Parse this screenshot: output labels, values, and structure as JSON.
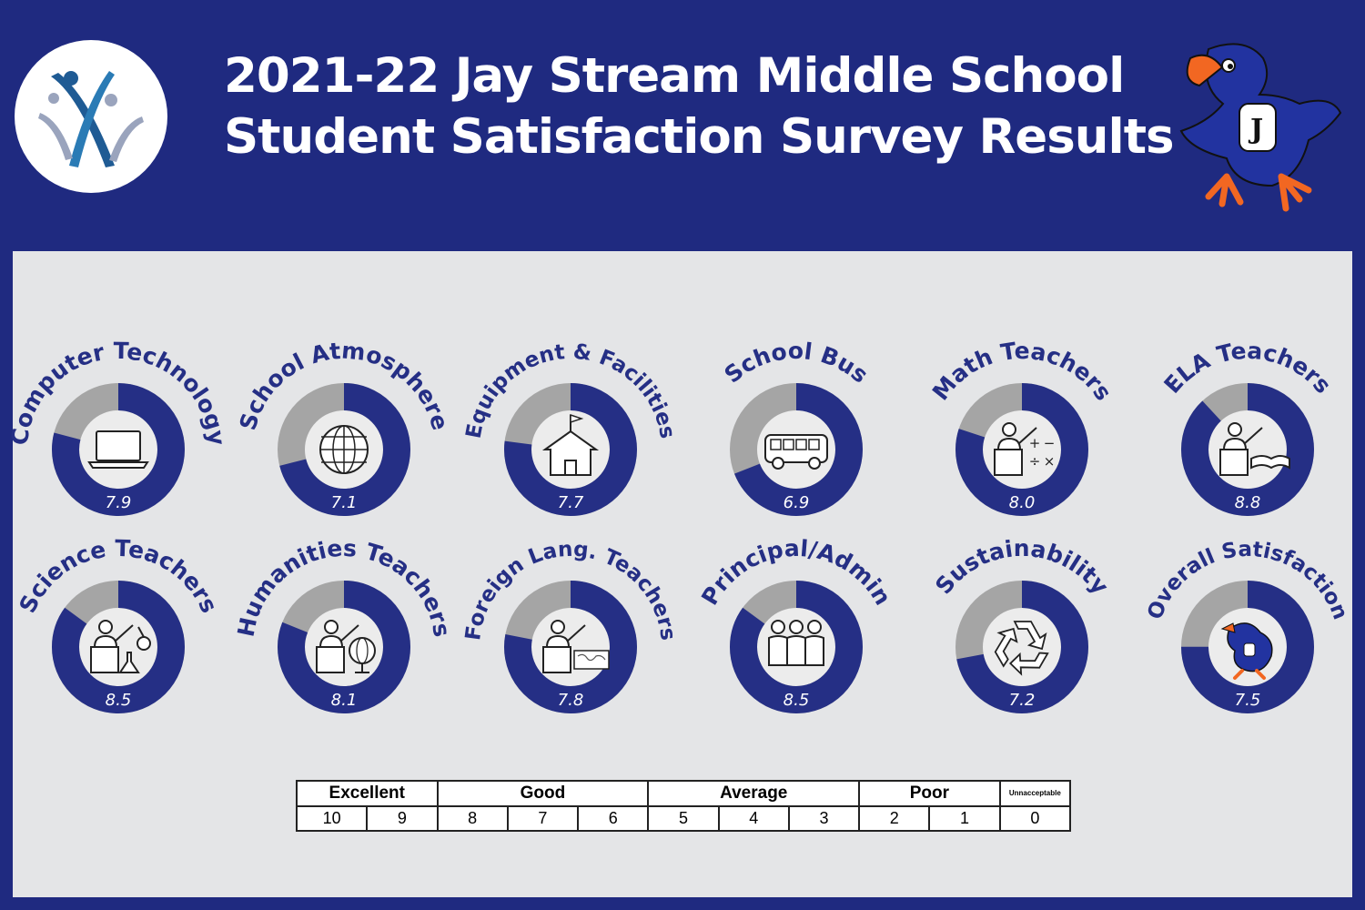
{
  "header": {
    "title_line1": "2021-22 Jay Stream Middle School",
    "title_line2": "Student Satisfaction Survey Results"
  },
  "colors": {
    "background": "#1f2a80",
    "panel": "#e4e5e7",
    "ring_filled": "#252f85",
    "ring_remainder": "#a5a5a5",
    "mascot_orange": "#f26722"
  },
  "chart_data": {
    "type": "donut",
    "scale_max": 10,
    "items": [
      {
        "label": "Computer Technology",
        "value": 7.9,
        "display": "7.9",
        "icon": "laptop-icon"
      },
      {
        "label": "School Atmosphere",
        "value": 7.1,
        "display": "7.1",
        "icon": "globe-icon"
      },
      {
        "label": "Equipment & Facilities",
        "value": 7.7,
        "display": "7.7",
        "icon": "schoolhouse-icon"
      },
      {
        "label": "School Bus",
        "value": 6.9,
        "display": "6.9",
        "icon": "bus-icon"
      },
      {
        "label": "Math Teachers",
        "value": 8.0,
        "display": "8.0",
        "icon": "math-teacher-icon"
      },
      {
        "label": "ELA Teachers",
        "value": 8.8,
        "display": "8.8",
        "icon": "ela-teacher-icon"
      },
      {
        "label": "Science Teachers",
        "value": 8.5,
        "display": "8.5",
        "icon": "science-teacher-icon"
      },
      {
        "label": "Humanities Teachers",
        "value": 8.1,
        "display": "8.1",
        "icon": "humanities-teacher-icon"
      },
      {
        "label": "Foreign Lang. Teachers",
        "value": 7.8,
        "display": "7.8",
        "icon": "foreign-language-teacher-icon"
      },
      {
        "label": "Principal/Admin",
        "value": 8.5,
        "display": "8.5",
        "icon": "people-group-icon"
      },
      {
        "label": "Sustainability",
        "value": 7.2,
        "display": "7.2",
        "icon": "recycle-icon"
      },
      {
        "label": "Overall Satisfaction",
        "value": 7.5,
        "display": "7.5",
        "icon": "mascot-icon"
      }
    ]
  },
  "legend": {
    "categories": [
      {
        "label": "Excellent",
        "span": 2
      },
      {
        "label": "Good",
        "span": 3
      },
      {
        "label": "Average",
        "span": 3
      },
      {
        "label": "Poor",
        "span": 2
      },
      {
        "label": "Unnacceptable",
        "span": 1
      }
    ],
    "scores": [
      "10",
      "9",
      "8",
      "7",
      "6",
      "5",
      "4",
      "3",
      "2",
      "1",
      "0"
    ]
  }
}
